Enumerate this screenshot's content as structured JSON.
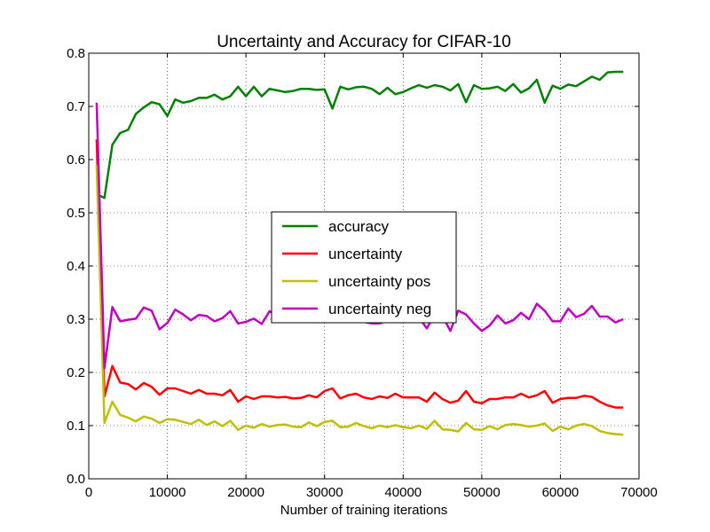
{
  "chart_data": {
    "type": "line",
    "title": "Uncertainty and Accuracy for CIFAR-10",
    "xlabel": "Number of training iterations",
    "ylabel": "",
    "xlim": [
      0,
      70000
    ],
    "ylim": [
      0.0,
      0.8
    ],
    "xticks": [
      0,
      10000,
      20000,
      30000,
      40000,
      50000,
      60000,
      70000
    ],
    "xtick_labels": [
      "0",
      "10000",
      "20000",
      "30000",
      "40000",
      "50000",
      "60000",
      "70000"
    ],
    "yticks": [
      0.0,
      0.1,
      0.2,
      0.3,
      0.4,
      0.5,
      0.6,
      0.7,
      0.8
    ],
    "ytick_labels": [
      "0.0",
      "0.1",
      "0.2",
      "0.3",
      "0.4",
      "0.5",
      "0.6",
      "0.7",
      "0.8"
    ],
    "grid": true,
    "legend_position": "center-right",
    "x": [
      1000,
      2000,
      3000,
      4000,
      5000,
      6000,
      7000,
      8000,
      9000,
      10000,
      11000,
      12000,
      13000,
      14000,
      15000,
      16000,
      17000,
      18000,
      19000,
      20000,
      21000,
      22000,
      23000,
      24000,
      25000,
      26000,
      27000,
      28000,
      29000,
      30000,
      31000,
      32000,
      33000,
      34000,
      35000,
      36000,
      37000,
      38000,
      39000,
      40000,
      41000,
      42000,
      43000,
      44000,
      45000,
      46000,
      47000,
      48000,
      49000,
      50000,
      51000,
      52000,
      53000,
      54000,
      55000,
      56000,
      57000,
      58000,
      59000,
      60000,
      61000,
      62000,
      63000,
      64000,
      65000,
      66000,
      67000,
      68000
    ],
    "series": [
      {
        "name": "accuracy",
        "color": "#008000",
        "values": [
          0.535,
          0.528,
          0.628,
          0.65,
          0.656,
          0.686,
          0.698,
          0.708,
          0.704,
          0.682,
          0.713,
          0.707,
          0.71,
          0.716,
          0.716,
          0.722,
          0.713,
          0.719,
          0.737,
          0.719,
          0.737,
          0.719,
          0.733,
          0.73,
          0.727,
          0.729,
          0.733,
          0.733,
          0.731,
          0.732,
          0.696,
          0.737,
          0.732,
          0.736,
          0.737,
          0.733,
          0.723,
          0.735,
          0.723,
          0.727,
          0.734,
          0.74,
          0.735,
          0.74,
          0.737,
          0.73,
          0.742,
          0.708,
          0.74,
          0.733,
          0.734,
          0.737,
          0.729,
          0.742,
          0.726,
          0.734,
          0.75,
          0.707,
          0.739,
          0.733,
          0.741,
          0.738,
          0.747,
          0.756,
          0.75,
          0.764,
          0.765,
          0.765
        ]
      },
      {
        "name": "uncertainty",
        "color": "#ff0000",
        "values": [
          0.638,
          0.155,
          0.212,
          0.181,
          0.178,
          0.168,
          0.18,
          0.173,
          0.158,
          0.17,
          0.17,
          0.165,
          0.16,
          0.167,
          0.16,
          0.16,
          0.157,
          0.167,
          0.145,
          0.155,
          0.15,
          0.155,
          0.155,
          0.153,
          0.154,
          0.151,
          0.152,
          0.157,
          0.153,
          0.165,
          0.17,
          0.151,
          0.157,
          0.16,
          0.153,
          0.15,
          0.155,
          0.152,
          0.16,
          0.153,
          0.153,
          0.153,
          0.145,
          0.162,
          0.15,
          0.143,
          0.147,
          0.165,
          0.145,
          0.142,
          0.15,
          0.15,
          0.153,
          0.153,
          0.16,
          0.153,
          0.157,
          0.165,
          0.143,
          0.15,
          0.152,
          0.152,
          0.156,
          0.154,
          0.145,
          0.138,
          0.134,
          0.134
        ]
      },
      {
        "name": "uncertainty pos",
        "color": "#bfbf00",
        "values": [
          0.59,
          0.105,
          0.145,
          0.12,
          0.115,
          0.108,
          0.117,
          0.113,
          0.105,
          0.112,
          0.111,
          0.107,
          0.103,
          0.111,
          0.101,
          0.108,
          0.099,
          0.109,
          0.092,
          0.1,
          0.096,
          0.103,
          0.098,
          0.101,
          0.102,
          0.098,
          0.097,
          0.106,
          0.099,
          0.107,
          0.109,
          0.097,
          0.098,
          0.105,
          0.099,
          0.095,
          0.1,
          0.097,
          0.101,
          0.097,
          0.095,
          0.1,
          0.094,
          0.109,
          0.093,
          0.092,
          0.089,
          0.105,
          0.093,
          0.092,
          0.099,
          0.093,
          0.101,
          0.103,
          0.101,
          0.098,
          0.1,
          0.104,
          0.09,
          0.098,
          0.093,
          0.1,
          0.103,
          0.099,
          0.09,
          0.086,
          0.084,
          0.083
        ]
      },
      {
        "name": "uncertainty neg",
        "color": "#bf00bf",
        "values": [
          0.707,
          0.208,
          0.323,
          0.296,
          0.299,
          0.301,
          0.322,
          0.316,
          0.281,
          0.293,
          0.318,
          0.309,
          0.298,
          0.308,
          0.306,
          0.296,
          0.302,
          0.315,
          0.292,
          0.295,
          0.301,
          0.291,
          0.315,
          0.306,
          0.297,
          0.3,
          0.304,
          0.308,
          0.3,
          0.31,
          0.302,
          0.299,
          0.305,
          0.302,
          0.295,
          0.292,
          0.292,
          0.298,
          0.305,
          0.302,
          0.303,
          0.303,
          0.283,
          0.308,
          0.306,
          0.278,
          0.316,
          0.309,
          0.292,
          0.278,
          0.288,
          0.307,
          0.292,
          0.298,
          0.312,
          0.3,
          0.329,
          0.316,
          0.296,
          0.296,
          0.32,
          0.304,
          0.31,
          0.325,
          0.305,
          0.305,
          0.294,
          0.3
        ]
      }
    ]
  }
}
